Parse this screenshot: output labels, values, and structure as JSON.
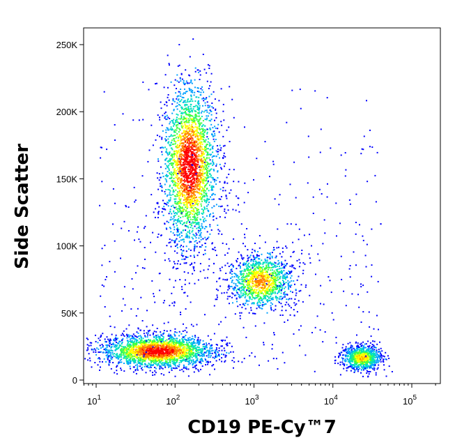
{
  "chart_data": {
    "type": "scatter",
    "subtype": "flow-cytometry pseudocolor density plot",
    "xlabel": "CD19 PE-Cy™7",
    "ylabel": "Side Scatter",
    "x_scale": "biexponential (linear near 0, log above)",
    "y_scale": "linear",
    "xlim": [
      7,
      250000
    ],
    "ylim": [
      0,
      262144
    ],
    "x_ticks": [
      {
        "value": 10,
        "mantissa": "10",
        "exp": "1"
      },
      {
        "value": 100,
        "mantissa": "10",
        "exp": "2"
      },
      {
        "value": 1000,
        "mantissa": "10",
        "exp": "3"
      },
      {
        "value": 10000,
        "mantissa": "10",
        "exp": "4"
      },
      {
        "value": 100000,
        "mantissa": "10",
        "exp": "5"
      }
    ],
    "y_ticks": [
      {
        "value": 0,
        "label": "0"
      },
      {
        "value": 50000,
        "label": "50K"
      },
      {
        "value": 100000,
        "label": "100K"
      },
      {
        "value": 150000,
        "label": "150K"
      },
      {
        "value": 200000,
        "label": "200K"
      },
      {
        "value": 250000,
        "label": "250K"
      }
    ],
    "colormap": [
      "#0000ff",
      "#00a0ff",
      "#00e0c0",
      "#40ff40",
      "#ffff00",
      "#ff8000",
      "#ff0000"
    ],
    "grid": false,
    "populations": [
      {
        "x_center": 150,
        "x_spread_decades": 0.17,
        "y_center": 160000,
        "y_spread": 30000,
        "relative_density": 1.0
      },
      {
        "x_center": 1200,
        "x_spread_decades": 0.2,
        "y_center": 74000,
        "y_spread": 10000,
        "relative_density": 0.45
      },
      {
        "x_center": 60,
        "x_spread_decades": 0.35,
        "y_center": 22000,
        "y_spread": 6000,
        "relative_density": 0.9
      },
      {
        "x_center": 23000,
        "x_spread_decades": 0.12,
        "y_center": 17000,
        "y_spread": 4500,
        "relative_density": 0.35
      }
    ]
  }
}
